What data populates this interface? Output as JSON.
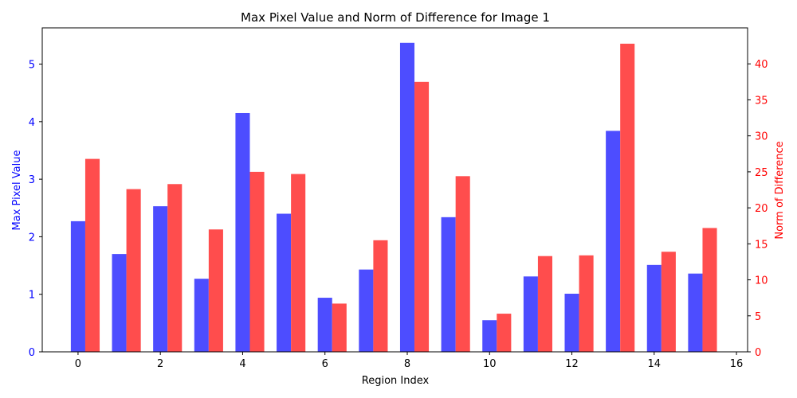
{
  "chart_data": {
    "type": "bar",
    "title": "Max Pixel Value and Norm of Difference for Image 1",
    "xlabel": "Region Index",
    "ylabel_left": "Max Pixel Value",
    "ylabel_right": "Norm of Difference",
    "x": [
      0,
      1,
      2,
      3,
      4,
      5,
      6,
      7,
      8,
      9,
      10,
      11,
      12,
      13,
      14,
      15
    ],
    "x_ticks": [
      "0",
      "2",
      "4",
      "6",
      "8",
      "10",
      "12",
      "14",
      "16"
    ],
    "y_left_ticks": [
      "0",
      "1",
      "2",
      "3",
      "4",
      "5"
    ],
    "y_right_ticks": [
      "0",
      "5",
      "10",
      "15",
      "20",
      "25",
      "30",
      "35",
      "40"
    ],
    "xlim": [
      -0.87,
      16.27
    ],
    "ylim_left": [
      0,
      5.63
    ],
    "ylim_right": [
      0,
      45
    ],
    "grid": false,
    "series": [
      {
        "axis": "left",
        "color": "#4d4dff",
        "values": [
          2.27,
          1.7,
          2.53,
          1.27,
          4.15,
          2.4,
          0.94,
          1.43,
          5.37,
          2.34,
          0.55,
          1.31,
          1.01,
          3.84,
          1.51,
          1.36
        ]
      },
      {
        "axis": "right",
        "color": "#ff4d4d",
        "values": [
          26.8,
          22.6,
          23.3,
          17.0,
          25.0,
          24.7,
          6.7,
          15.5,
          37.5,
          24.4,
          5.3,
          13.3,
          13.4,
          42.8,
          13.9,
          17.2
        ]
      }
    ],
    "axis_colors": {
      "left": "#0000ff",
      "right": "#ff0000"
    }
  }
}
